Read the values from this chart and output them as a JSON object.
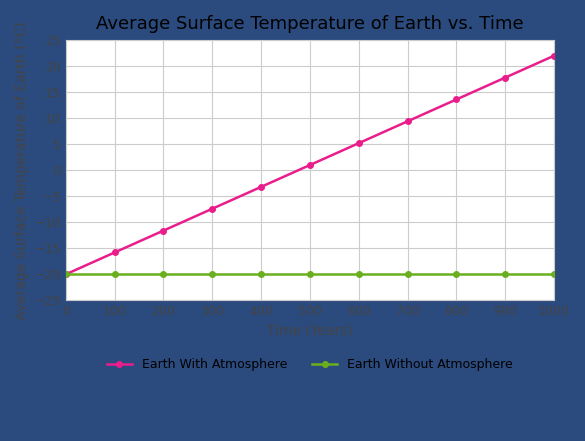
{
  "title": "Average Surface Temperature of Earth vs. Time",
  "xlabel": "Time (Years)",
  "ylabel": "Average Surface Temperature of Earth (°C)",
  "xlim": [
    0,
    1000
  ],
  "ylim": [
    -25,
    25
  ],
  "xticks": [
    0,
    100,
    200,
    300,
    400,
    500,
    600,
    700,
    800,
    900,
    1000
  ],
  "yticks": [
    -25,
    -20,
    -15,
    -10,
    -5,
    0,
    5,
    10,
    15,
    20,
    25
  ],
  "atmosphere_color": "#E91E8C",
  "no_atmosphere_color": "#6AAF1E",
  "atmosphere_label": "Earth With Atmosphere",
  "no_atmosphere_label": "Earth Without Atmosphere",
  "atmosphere_start_temp": -20,
  "atmosphere_end_temp": 22,
  "no_atmosphere_temp": -20,
  "background_color": "#FFFFFF",
  "outer_background": "#2B4B7E",
  "grid_color": "#CCCCCC",
  "title_fontsize": 13,
  "axis_label_fontsize": 10,
  "tick_fontsize": 9,
  "legend_fontsize": 9,
  "marker_style": "o",
  "marker_size": 4,
  "line_width": 1.8,
  "marker_interval": 100
}
